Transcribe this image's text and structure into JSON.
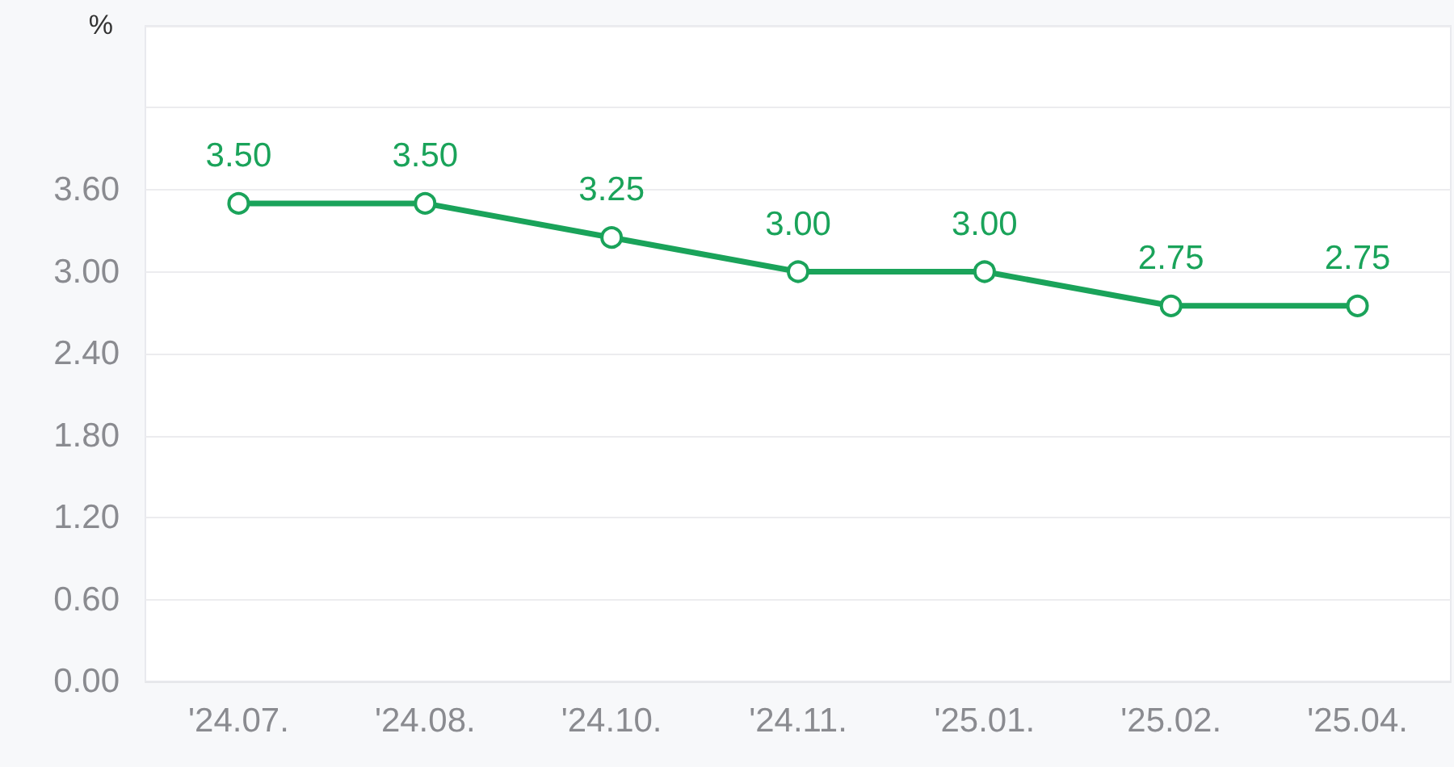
{
  "chart_data": {
    "type": "line",
    "ylabel": "%",
    "categories": [
      "'24.07.",
      "'24.08.",
      "'24.10.",
      "'24.11.",
      "'25.01.",
      "'25.02.",
      "'25.04."
    ],
    "series": [
      {
        "color": "#1aa35a",
        "values": [
          3.5,
          3.5,
          3.25,
          3.0,
          3.0,
          2.75,
          2.75
        ],
        "value_labels": [
          "3.50",
          "3.50",
          "3.25",
          "3.00",
          "3.00",
          "2.75",
          "2.75"
        ]
      }
    ],
    "ylim": [
      0,
      4.8
    ],
    "yticks": [
      {
        "value": 0,
        "label": "0.00"
      },
      {
        "value": 0.6,
        "label": "0.60"
      },
      {
        "value": 1.2,
        "label": "1.20"
      },
      {
        "value": 1.8,
        "label": "1.80"
      },
      {
        "value": 2.4,
        "label": "2.40"
      },
      {
        "value": 3.0,
        "label": "3.00"
      },
      {
        "value": 3.6,
        "label": "3.60"
      },
      {
        "value": 4.2,
        "label": null
      },
      {
        "value": 4.8,
        "label": null
      }
    ],
    "grid": "y",
    "marker": "circle",
    "line_style": "solid"
  }
}
